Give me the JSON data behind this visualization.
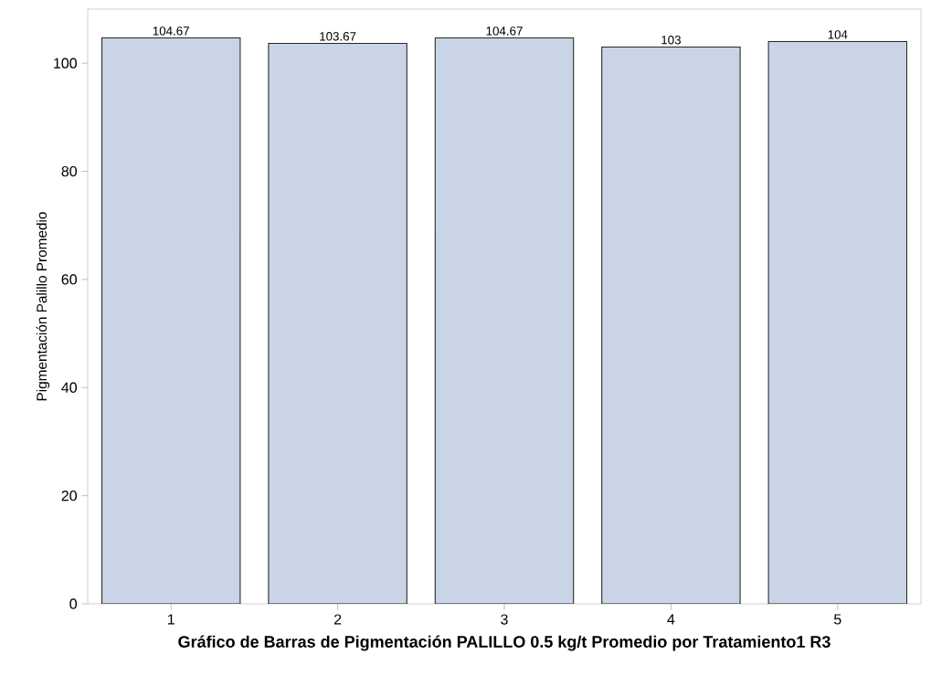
{
  "chart_data": {
    "type": "bar",
    "xlabel": "Gráfico de Barras de Pigmentación PALILLO 0.5 kg/t Promedio por Tratamiento1 R3",
    "ylabel": "Pigmentación Palillo Promedio",
    "categories": [
      "1",
      "2",
      "3",
      "4",
      "5"
    ],
    "values": [
      104.67,
      103.67,
      104.67,
      103,
      104
    ],
    "color": "#c9d5e6",
    "ylim": [
      0,
      110
    ],
    "yticks": [
      0,
      20,
      40,
      60,
      80,
      100
    ],
    "data_labels": true
  }
}
